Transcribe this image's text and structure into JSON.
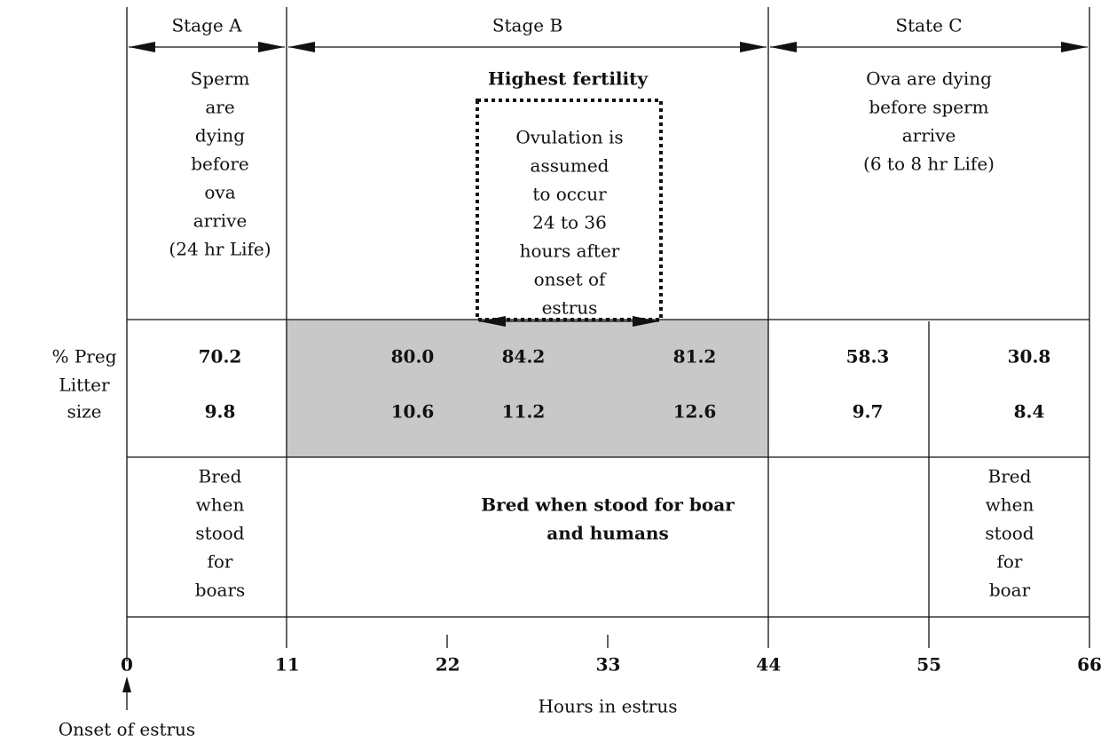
{
  "stages": [
    {
      "label": "Stage A",
      "note": [
        "Sperm",
        "are",
        "dying",
        "before",
        "ova",
        "arrive",
        "(24 hr Life)"
      ]
    },
    {
      "label": "Stage B",
      "note": [
        "Highest fertility"
      ]
    },
    {
      "label": "State C",
      "note": [
        "Ova are dying",
        "before sperm",
        "arrive",
        "(6 to 8 hr Life)"
      ]
    }
  ],
  "ovulation": [
    "Ovulation is",
    "assumed",
    "to occur",
    "24 to 36",
    "hours after",
    "onset of",
    "estrus"
  ],
  "row_labels": [
    [
      "% Preg"
    ],
    [
      "Litter",
      "size"
    ]
  ],
  "rows": [
    [
      "70.2",
      "80.0",
      "84.2",
      "81.2",
      "58.3",
      "30.8"
    ],
    [
      "9.8",
      "10.6",
      "11.2",
      "12.6",
      "9.7",
      "8.4"
    ]
  ],
  "bred": [
    [
      "Bred",
      "when",
      "stood",
      "for",
      "boars"
    ],
    [
      "Bred when stood for boar",
      "and humans"
    ],
    [
      "Bred",
      "when",
      "stood",
      "for",
      "boar"
    ]
  ],
  "x_axis": {
    "label": "Hours in estrus",
    "ticks": [
      0,
      11,
      22,
      33,
      44,
      55,
      66
    ]
  },
  "onset": "Onset of estrus"
}
